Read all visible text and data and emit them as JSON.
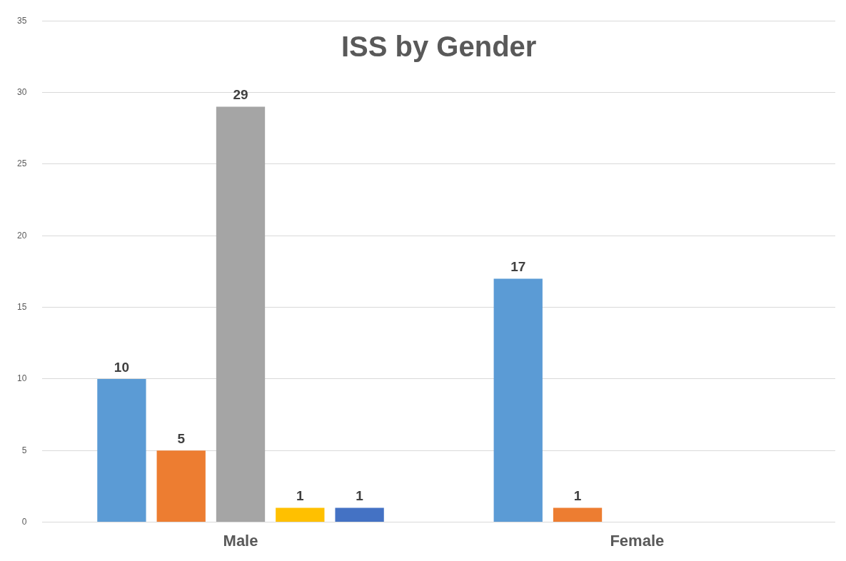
{
  "chart_data": {
    "type": "bar",
    "title": "ISS by Gender",
    "categories": [
      "Male",
      "Female"
    ],
    "series": [
      {
        "color": "#5b9bd5",
        "values": [
          10,
          17
        ]
      },
      {
        "color": "#ed7d31",
        "values": [
          5,
          1
        ]
      },
      {
        "color": "#a5a5a5",
        "values": [
          29,
          null
        ]
      },
      {
        "color": "#ffc000",
        "values": [
          1,
          null
        ]
      },
      {
        "color": "#4472c4",
        "values": [
          1,
          null
        ]
      }
    ],
    "ylim": [
      0,
      35
    ],
    "yticks": [
      0,
      5,
      10,
      15,
      20,
      25,
      30,
      35
    ],
    "grid": "y",
    "data_labels": true,
    "legend": false
  }
}
